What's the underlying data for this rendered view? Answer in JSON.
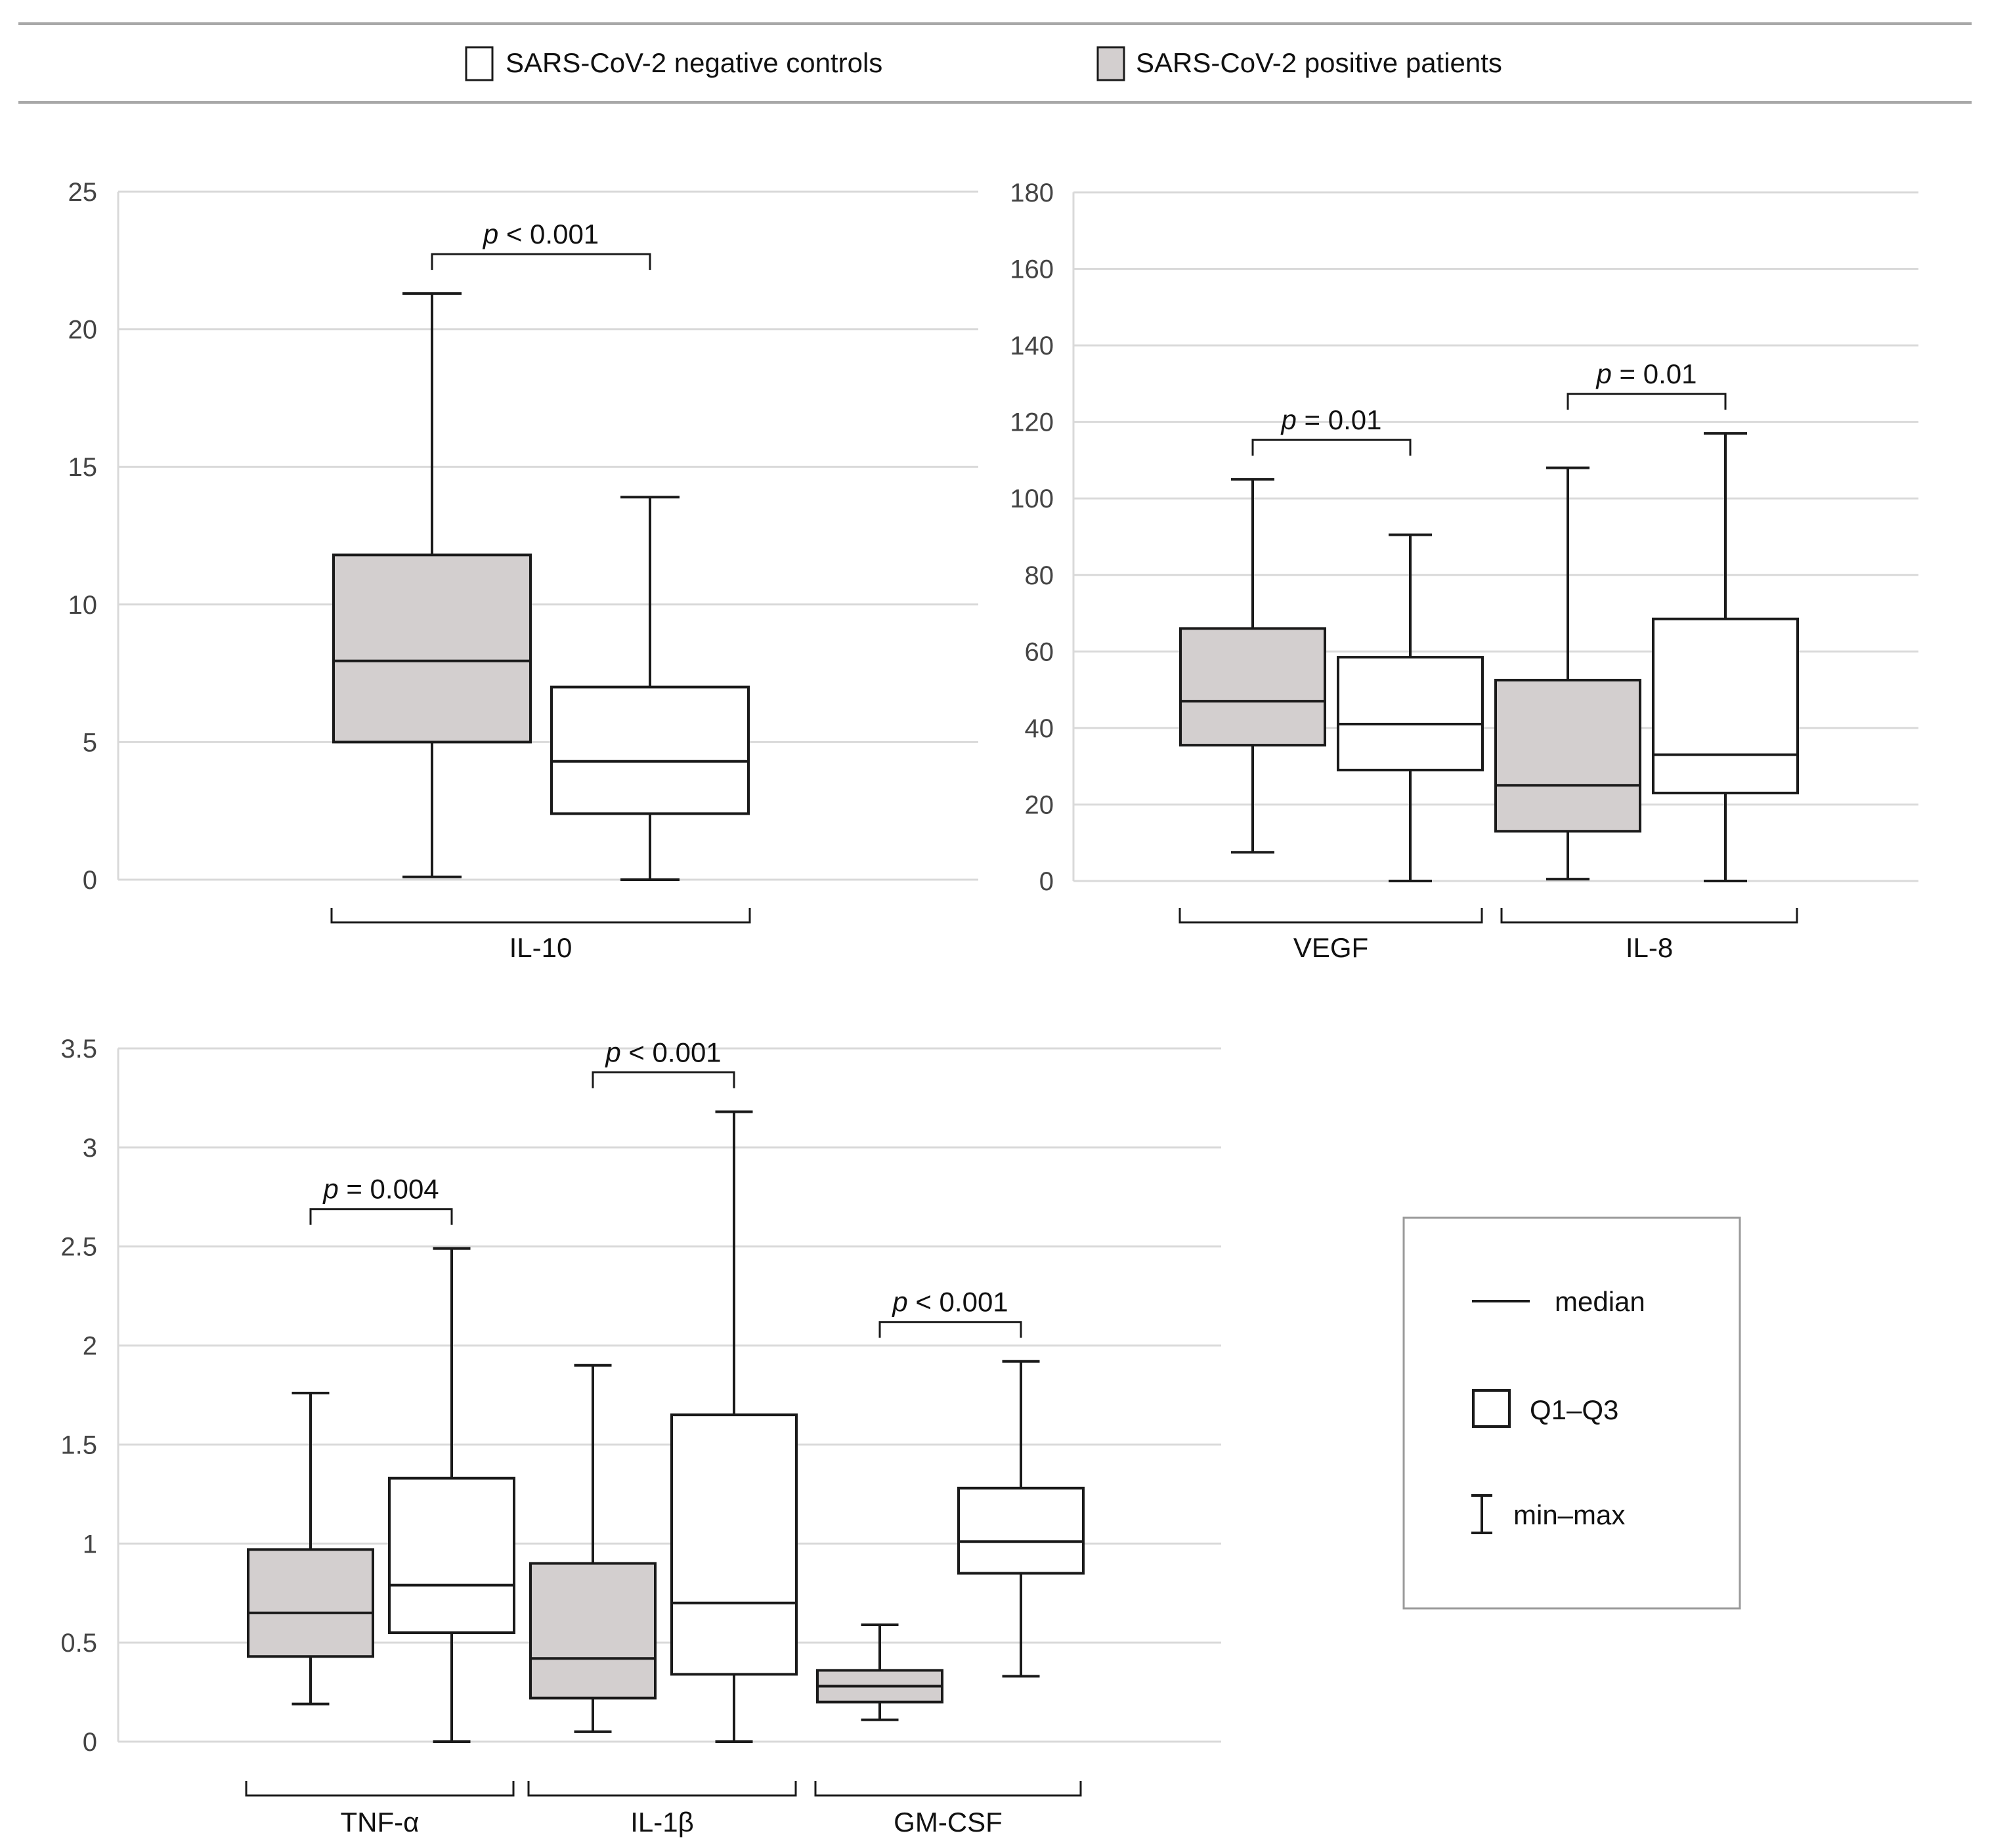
{
  "colors": {
    "positive_fill": "#d3cfcf",
    "negative_fill": "#ffffff",
    "stroke": "#1a1a1a",
    "grid": "#d9d9d9",
    "rule": "#a8a8a8"
  },
  "legend_top": {
    "negative": "SARS-CoV-2 negative controls",
    "positive": "SARS-CoV-2 positive patients"
  },
  "legend_key": {
    "median": "median",
    "iqr": "Q1–Q3",
    "range": "min–max"
  },
  "chart_data": [
    {
      "type": "box",
      "ylim": [
        0,
        25
      ],
      "yticks": [
        "0",
        "5",
        "10",
        "15",
        "20",
        "25"
      ],
      "groups": [
        {
          "label": "IL-10",
          "pvalue": {
            "italic": "p",
            "rest": " < 0.001"
          },
          "boxes": [
            {
              "series": "positive",
              "min": 0.1,
              "q1": 5.0,
              "median": 7.95,
              "q3": 11.8,
              "max": 21.3
            },
            {
              "series": "negative",
              "min": 0.0,
              "q1": 2.4,
              "median": 4.3,
              "q3": 7.0,
              "max": 13.9
            }
          ]
        }
      ]
    },
    {
      "type": "box",
      "ylim": [
        0,
        180
      ],
      "yticks": [
        "0",
        "20",
        "40",
        "60",
        "80",
        "100",
        "120",
        "140",
        "160",
        "180"
      ],
      "groups": [
        {
          "label": "VEGF",
          "pvalue": {
            "italic": "p",
            "rest": " = 0.01"
          },
          "boxes": [
            {
              "series": "positive",
              "min": 7.5,
              "q1": 35.5,
              "median": 47,
              "q3": 66,
              "max": 105
            },
            {
              "series": "negative",
              "min": 0.0,
              "q1": 29,
              "median": 41,
              "q3": 58.5,
              "max": 90.5
            }
          ]
        },
        {
          "label": "IL-8",
          "pvalue": {
            "italic": "p",
            "rest": " = 0.01"
          },
          "boxes": [
            {
              "series": "positive",
              "min": 0.5,
              "q1": 13,
              "median": 25,
              "q3": 52.5,
              "max": 108
            },
            {
              "series": "negative",
              "min": 0.0,
              "q1": 23,
              "median": 33,
              "q3": 68.5,
              "max": 117
            }
          ]
        }
      ]
    },
    {
      "type": "box",
      "ylim": [
        0,
        3.5
      ],
      "yticks": [
        "0",
        "0.5",
        "1",
        "1.5",
        "2",
        "2.5",
        "3",
        "3.5"
      ],
      "groups": [
        {
          "label": "TNF-α",
          "pvalue": {
            "italic": "p",
            "rest": " = 0.004"
          },
          "boxes": [
            {
              "series": "positive",
              "min": 0.19,
              "q1": 0.43,
              "median": 0.65,
              "q3": 0.97,
              "max": 1.76
            },
            {
              "series": "negative",
              "min": 0.0,
              "q1": 0.55,
              "median": 0.79,
              "q3": 1.33,
              "max": 2.49
            }
          ]
        },
        {
          "label": "IL-1β",
          "pvalue": {
            "italic": "p",
            "rest": " < 0.001"
          },
          "boxes": [
            {
              "series": "positive",
              "min": 0.05,
              "q1": 0.22,
              "median": 0.42,
              "q3": 0.9,
              "max": 1.9
            },
            {
              "series": "negative",
              "min": 0.0,
              "q1": 0.34,
              "median": 0.7,
              "q3": 1.65,
              "max": 3.18
            }
          ]
        },
        {
          "label": "GM-CSF",
          "pvalue": {
            "italic": "p",
            "rest": " < 0.001"
          },
          "boxes": [
            {
              "series": "positive",
              "min": 0.11,
              "q1": 0.2,
              "median": 0.28,
              "q3": 0.36,
              "max": 0.59
            },
            {
              "series": "negative",
              "min": 0.33,
              "q1": 0.85,
              "median": 1.01,
              "q3": 1.28,
              "max": 1.92
            }
          ]
        }
      ]
    }
  ]
}
